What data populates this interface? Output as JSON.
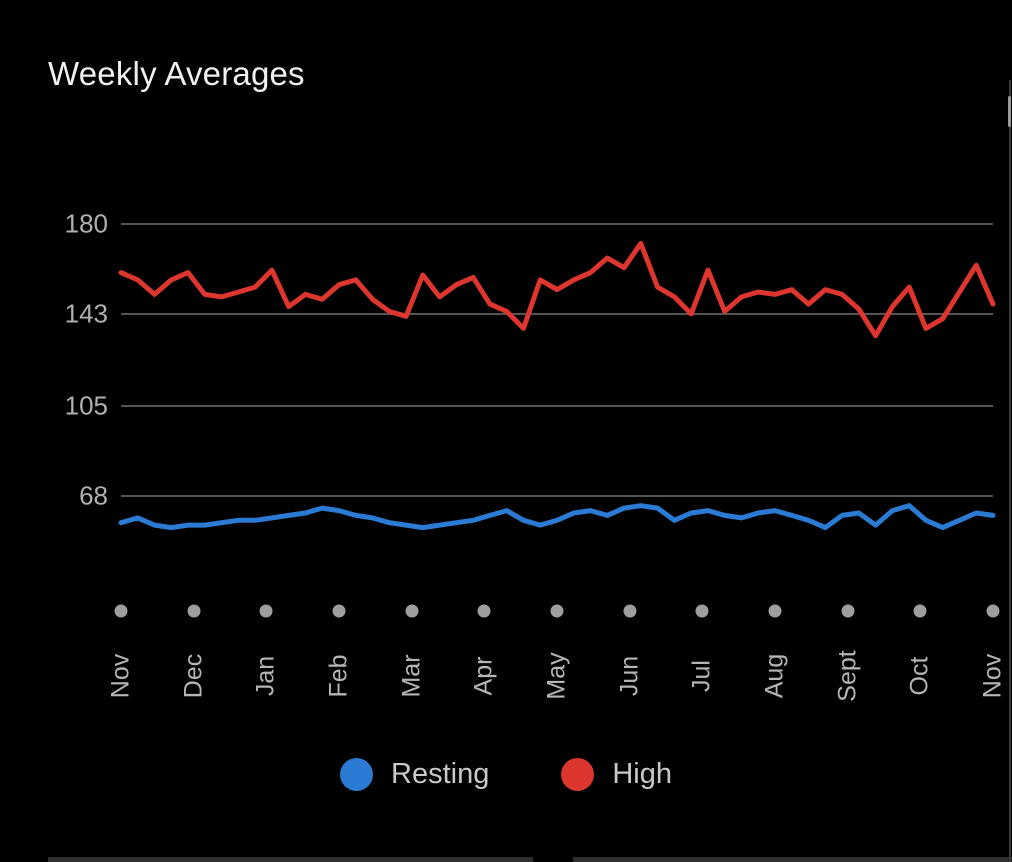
{
  "title": "Weekly Averages",
  "chart_data": {
    "type": "line",
    "title": "Weekly Averages",
    "x_axis": {
      "tick_labels": [
        "Nov",
        "Dec",
        "Jan",
        "Feb",
        "Mar",
        "Apr",
        "May",
        "Jun",
        "Jul",
        "Aug",
        "Sept",
        "Oct",
        "Nov"
      ],
      "unit": "month",
      "points_are": "weekly averages"
    },
    "y_axis": {
      "ticks": [
        {
          "label": "180",
          "value": 180
        },
        {
          "label": "143",
          "value": 143
        },
        {
          "label": "105",
          "value": 105
        },
        {
          "label": "68",
          "value": 68
        }
      ],
      "grid": true
    },
    "series": [
      {
        "name": "Resting",
        "color": "#2b7bd4",
        "values": [
          57,
          59,
          56,
          55,
          56,
          56,
          57,
          58,
          58,
          59,
          60,
          61,
          63,
          62,
          60,
          59,
          57,
          56,
          55,
          56,
          57,
          58,
          60,
          62,
          58,
          56,
          58,
          61,
          62,
          60,
          63,
          64,
          63,
          58,
          61,
          62,
          60,
          59,
          61,
          62,
          60,
          58,
          55,
          60,
          61,
          56,
          62,
          64,
          58,
          55,
          58,
          61,
          60
        ]
      },
      {
        "name": "High",
        "color": "#dc362e",
        "values": [
          160,
          157,
          151,
          157,
          160,
          151,
          150,
          152,
          154,
          161,
          146,
          151,
          149,
          155,
          157,
          149,
          144,
          142,
          159,
          150,
          155,
          158,
          147,
          144,
          137,
          157,
          153,
          157,
          160,
          166,
          162,
          172,
          154,
          150,
          143,
          161,
          144,
          150,
          152,
          151,
          153,
          147,
          153,
          151,
          145,
          134,
          146,
          154,
          137,
          141,
          152,
          163,
          147
        ]
      }
    ],
    "legend_position": "bottom"
  },
  "legend": {
    "items": [
      {
        "label": "Resting",
        "color": "#2b7bd4"
      },
      {
        "label": "High",
        "color": "#dc362e"
      }
    ]
  }
}
